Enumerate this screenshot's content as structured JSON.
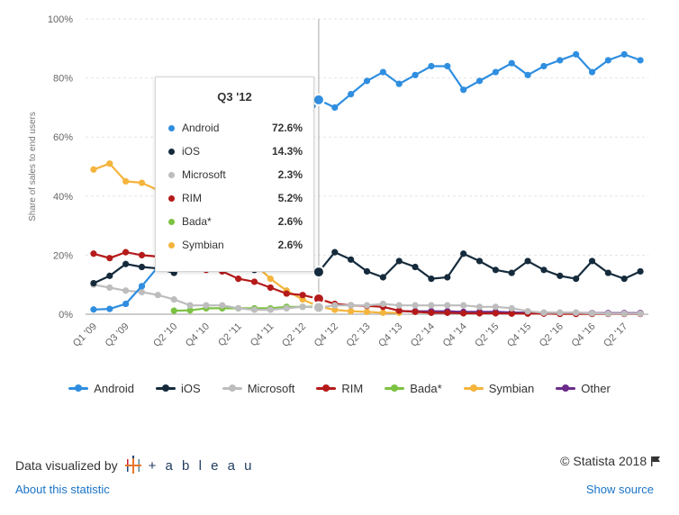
{
  "chart_data": {
    "type": "line",
    "title": "",
    "xlabel": "",
    "ylabel": "Share of sales to end users",
    "ylim": [
      0,
      100
    ],
    "yticks": [
      "0%",
      "20%",
      "40%",
      "60%",
      "80%",
      "100%"
    ],
    "grid": true,
    "legend_position": "bottom",
    "x": [
      "Q1 '09",
      "Q2 '09",
      "Q3 '09",
      "Q4 '09",
      "Q1 '10",
      "Q2 '10",
      "Q3 '10",
      "Q4 '10",
      "Q1 '11",
      "Q2 '11",
      "Q3 '11",
      "Q4 '11",
      "Q1 '12",
      "Q2 '12",
      "Q3 '12",
      "Q4 '12",
      "Q1 '13",
      "Q2 '13",
      "Q3 '13",
      "Q4 '13",
      "Q1 '14",
      "Q2 '14",
      "Q3 '14",
      "Q4 '14",
      "Q1 '15",
      "Q2 '15",
      "Q3 '15",
      "Q4 '15",
      "Q1 '16",
      "Q2 '16",
      "Q3 '16",
      "Q4 '16",
      "Q1 '17",
      "Q2 '17",
      "Q3 '17"
    ],
    "xtick_labels": [
      "Q1 '09",
      "Q3 '09",
      "Q2 '10",
      "Q4 '10",
      "Q2 '11",
      "Q4 '11",
      "Q2 '12",
      "Q4 '12",
      "Q2 '13",
      "Q4 '13",
      "Q2 '14",
      "Q4 '14",
      "Q2 '15",
      "Q4 '15",
      "Q2 '16",
      "Q4 '16",
      "Q2 '17"
    ],
    "series": [
      {
        "name": "Android",
        "color": "#2f8ee0",
        "values": [
          1.6,
          1.8,
          3.5,
          9.5,
          16,
          17,
          25,
          30,
          36,
          43,
          52,
          50,
          56,
          64,
          72.6,
          70,
          74.5,
          79,
          82,
          78,
          81,
          84,
          84,
          76,
          79,
          82,
          85,
          81,
          84,
          86,
          88,
          82,
          86,
          88,
          86
        ]
      },
      {
        "name": "iOS",
        "color": "#152b3c",
        "values": [
          10.5,
          13,
          17,
          16,
          15.5,
          14,
          17,
          16,
          17,
          16,
          15,
          16,
          22,
          19,
          14.3,
          21,
          18.5,
          14.5,
          12.5,
          18,
          16,
          12,
          12.5,
          20.5,
          18,
          15,
          14,
          18,
          15,
          13,
          12,
          18,
          14,
          12,
          14.5
        ]
      },
      {
        "name": "Microsoft",
        "color": "#bdbdbd",
        "values": [
          10,
          9,
          8,
          7.5,
          6.5,
          5,
          3,
          3,
          3,
          2,
          1.5,
          1.5,
          2,
          2.5,
          2.3,
          3,
          3,
          3,
          3.5,
          3,
          3,
          3,
          3,
          3,
          2.5,
          2.5,
          2,
          1,
          0.5,
          0.5,
          0.5,
          0.3,
          0.2,
          0.2,
          0.2
        ]
      },
      {
        "name": "RIM",
        "color": "#b51a1a",
        "values": [
          20.5,
          19,
          21,
          20,
          19.5,
          18.5,
          16.5,
          15,
          14.5,
          12,
          11,
          9,
          7,
          6.5,
          5.2,
          3.5,
          3,
          2.8,
          2.5,
          1.2,
          0.8,
          0.5,
          0.5,
          0.3,
          0.3,
          0.3,
          0.2,
          0.2,
          0.2,
          0.1,
          0.1,
          0.1,
          0.1,
          0.1,
          0.1
        ]
      },
      {
        "name": "Bada*",
        "color": "#7cc242",
        "values": [
          null,
          null,
          null,
          null,
          null,
          1.2,
          1.3,
          2,
          2,
          2,
          2,
          2,
          2.5,
          2.5,
          2.6,
          null,
          null,
          null,
          null,
          null,
          null,
          null,
          null,
          null,
          null,
          null,
          null,
          null,
          null,
          null,
          null,
          null,
          null,
          null,
          null
        ]
      },
      {
        "name": "Symbian",
        "color": "#f5b43c",
        "values": [
          49,
          51,
          45,
          44.5,
          42,
          40,
          36,
          32,
          27,
          22,
          17,
          12,
          8,
          5,
          2.6,
          1.5,
          1,
          0.8,
          0.5,
          0.5,
          null,
          null,
          null,
          null,
          null,
          null,
          null,
          null,
          null,
          null,
          null,
          null,
          null,
          null,
          null
        ]
      },
      {
        "name": "Other",
        "color": "#6b2c8a",
        "values": [
          null,
          null,
          null,
          null,
          null,
          null,
          null,
          null,
          null,
          null,
          null,
          null,
          null,
          null,
          null,
          null,
          null,
          null,
          null,
          1,
          1,
          1,
          1,
          0.8,
          0.8,
          0.8,
          0.6,
          0.5,
          0.5,
          0.5,
          0.5,
          0.4,
          0.4,
          0.4,
          0.4
        ]
      }
    ],
    "hover_index": 14
  },
  "tooltip": {
    "title": "Q3 '12",
    "rows": [
      {
        "name": "Android",
        "value": "72.6%",
        "color": "#2f8ee0"
      },
      {
        "name": "iOS",
        "value": "14.3%",
        "color": "#152b3c"
      },
      {
        "name": "Microsoft",
        "value": "2.3%",
        "color": "#bdbdbd"
      },
      {
        "name": "RIM",
        "value": "5.2%",
        "color": "#b51a1a"
      },
      {
        "name": "Bada*",
        "value": "2.6%",
        "color": "#7cc242"
      },
      {
        "name": "Symbian",
        "value": "2.6%",
        "color": "#f5b43c"
      }
    ]
  },
  "legend": [
    {
      "name": "Android",
      "color": "#2f8ee0"
    },
    {
      "name": "iOS",
      "color": "#152b3c"
    },
    {
      "name": "Microsoft",
      "color": "#bdbdbd"
    },
    {
      "name": "RIM",
      "color": "#b51a1a"
    },
    {
      "name": "Bada*",
      "color": "#7cc242"
    },
    {
      "name": "Symbian",
      "color": "#f5b43c"
    },
    {
      "name": "Other",
      "color": "#6b2c8a"
    }
  ],
  "footer": {
    "visualized_by": "Data visualized by",
    "tableau_logo_text": "+ a b l e a u",
    "tableau_icon": "tableau-cross-icon",
    "copyright": "© Statista 2018",
    "flag_icon": "flag-icon",
    "about_link": "About this statistic",
    "source_link": "Show source"
  }
}
